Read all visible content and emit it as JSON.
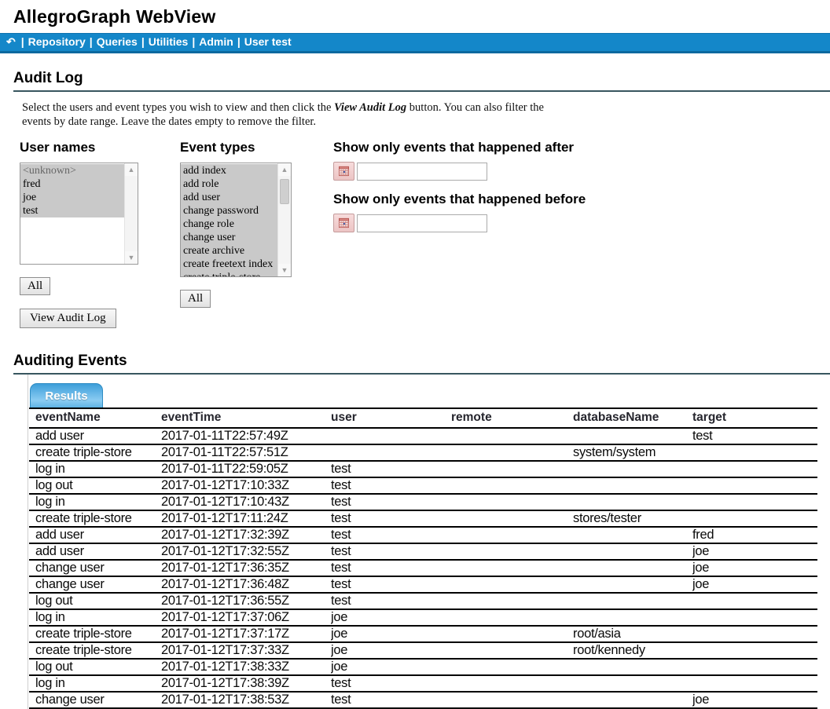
{
  "app": {
    "title": "AllegroGraph WebView"
  },
  "nav": {
    "back_icon": "↶",
    "separator": "|",
    "items": [
      "Repository",
      "Queries",
      "Utilities",
      "Admin",
      "User test"
    ],
    "bg_color": "#1487c9"
  },
  "audit_log": {
    "title": "Audit Log",
    "instructions_pre": "Select the users and event types you wish to view and then click the ",
    "instructions_em": "View Audit Log",
    "instructions_post": " button. You can also filter the events by date range. Leave the dates empty to remove the filter.",
    "user_names": {
      "label": "User names",
      "all_button": "All",
      "items": [
        {
          "label": "<unknown>",
          "selected": true,
          "muted": true
        },
        {
          "label": "fred",
          "selected": true,
          "muted": false
        },
        {
          "label": "joe",
          "selected": true,
          "muted": false
        },
        {
          "label": "test",
          "selected": true,
          "muted": false
        }
      ]
    },
    "event_types": {
      "label": "Event types",
      "all_button": "All",
      "items": [
        {
          "label": "add index",
          "selected": true,
          "muted": false
        },
        {
          "label": "add role",
          "selected": true,
          "muted": false
        },
        {
          "label": "add user",
          "selected": true,
          "muted": false
        },
        {
          "label": "change password",
          "selected": true,
          "muted": false
        },
        {
          "label": "change role",
          "selected": true,
          "muted": false
        },
        {
          "label": "change user",
          "selected": true,
          "muted": false
        },
        {
          "label": "create archive",
          "selected": true,
          "muted": false
        },
        {
          "label": "create freetext index",
          "selected": true,
          "muted": false
        },
        {
          "label": "create triple-store",
          "selected": true,
          "muted": false
        }
      ]
    },
    "view_button": "View Audit Log",
    "after_filter": {
      "label": "Show only events that happened after",
      "value": ""
    },
    "before_filter": {
      "label": "Show only events that happened before",
      "value": ""
    },
    "selection_color": "#c9c9c9"
  },
  "auditing_events": {
    "title": "Auditing Events",
    "tab_label": "Results",
    "tab_color": "#5fb3e4",
    "table": {
      "columns": [
        "eventName",
        "eventTime",
        "user",
        "remote",
        "databaseName",
        "target"
      ],
      "rows": [
        [
          "add user",
          "2017-01-11T22:57:49Z",
          "",
          "",
          "",
          "test"
        ],
        [
          "create triple-store",
          "2017-01-11T22:57:51Z",
          "",
          "",
          "system/system",
          ""
        ],
        [
          "log in",
          "2017-01-11T22:59:05Z",
          "test",
          "",
          "",
          ""
        ],
        [
          "log out",
          "2017-01-12T17:10:33Z",
          "test",
          "",
          "",
          ""
        ],
        [
          "log in",
          "2017-01-12T17:10:43Z",
          "test",
          "",
          "",
          ""
        ],
        [
          "create triple-store",
          "2017-01-12T17:11:24Z",
          "test",
          "",
          "stores/tester",
          ""
        ],
        [
          "add user",
          "2017-01-12T17:32:39Z",
          "test",
          "",
          "",
          "fred"
        ],
        [
          "add user",
          "2017-01-12T17:32:55Z",
          "test",
          "",
          "",
          "joe"
        ],
        [
          "change user",
          "2017-01-12T17:36:35Z",
          "test",
          "",
          "",
          "joe"
        ],
        [
          "change user",
          "2017-01-12T17:36:48Z",
          "test",
          "",
          "",
          "joe"
        ],
        [
          "log out",
          "2017-01-12T17:36:55Z",
          "test",
          "",
          "",
          ""
        ],
        [
          "log in",
          "2017-01-12T17:37:06Z",
          "joe",
          "",
          "",
          ""
        ],
        [
          "create triple-store",
          "2017-01-12T17:37:17Z",
          "joe",
          "",
          "root/asia",
          ""
        ],
        [
          "create triple-store",
          "2017-01-12T17:37:33Z",
          "joe",
          "",
          "root/kennedy",
          ""
        ],
        [
          "log out",
          "2017-01-12T17:38:33Z",
          "joe",
          "",
          "",
          ""
        ],
        [
          "log in",
          "2017-01-12T17:38:39Z",
          "test",
          "",
          "",
          ""
        ],
        [
          "change user",
          "2017-01-12T17:38:53Z",
          "test",
          "",
          "",
          "joe"
        ]
      ]
    }
  }
}
